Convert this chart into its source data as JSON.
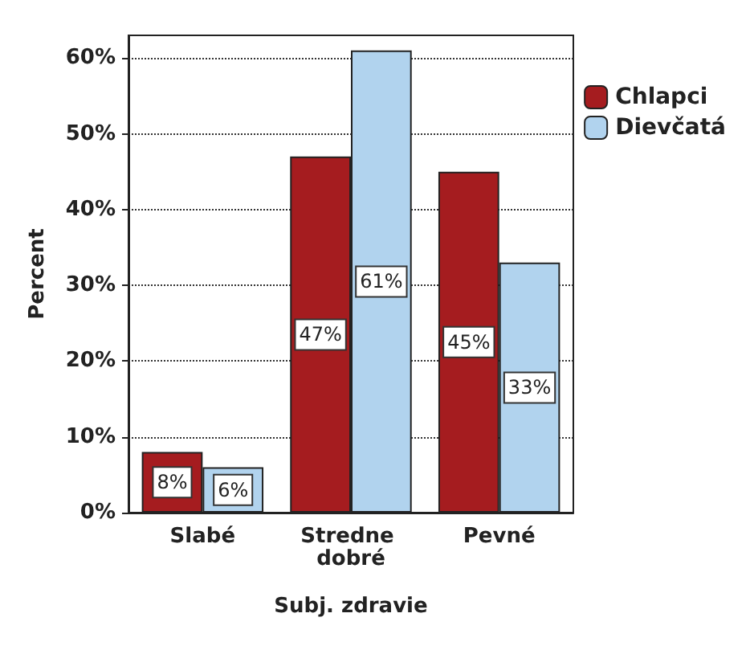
{
  "chart_data": {
    "type": "bar",
    "xlabel": "Subj. zdravie",
    "ylabel": "Percent",
    "categories": [
      "Slabé",
      "Stredne dobré",
      "Pevné"
    ],
    "series": [
      {
        "name": "Chlapci",
        "color": "#a51c1f",
        "values": [
          8,
          47,
          45
        ],
        "value_labels": [
          "8%",
          "47%",
          "45%"
        ]
      },
      {
        "name": "Dievčatá",
        "color": "#b1d3ee",
        "values": [
          6,
          61,
          33
        ],
        "value_labels": [
          "6%",
          "61%",
          "33%"
        ]
      }
    ],
    "ylim": [
      0,
      63
    ],
    "yticks": [
      {
        "value": 0,
        "label": "0%"
      },
      {
        "value": 10,
        "label": "10%"
      },
      {
        "value": 20,
        "label": "20%"
      },
      {
        "value": 30,
        "label": "30%"
      },
      {
        "value": 40,
        "label": "40%"
      },
      {
        "value": 50,
        "label": "50%"
      },
      {
        "value": 60,
        "label": "60%"
      }
    ],
    "grid": "y",
    "legend": "right",
    "line_style": "dotted"
  }
}
